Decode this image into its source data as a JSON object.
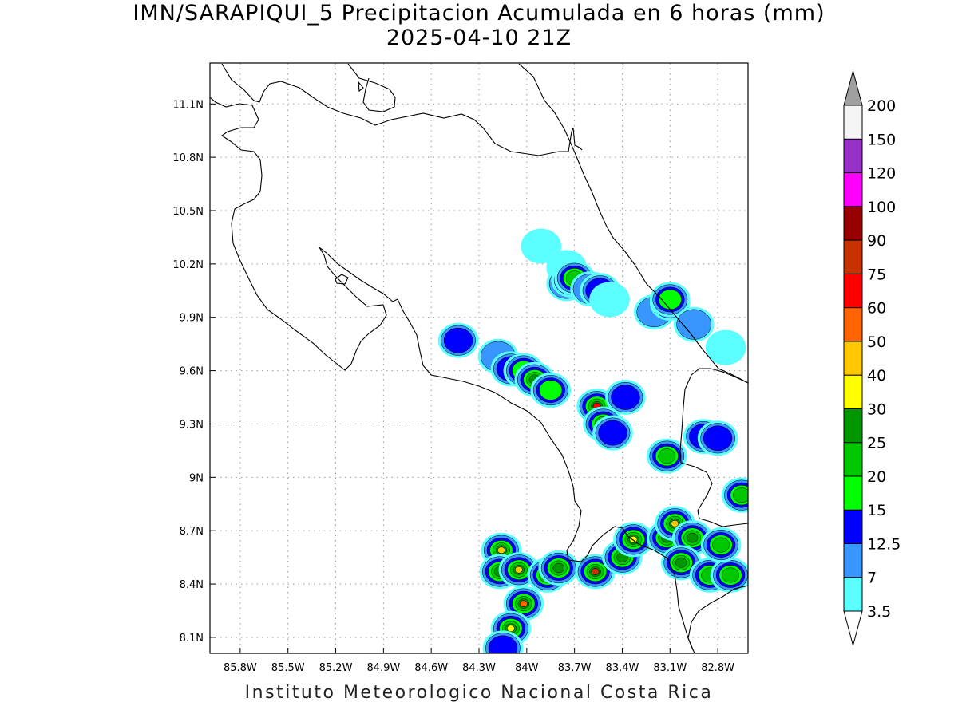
{
  "title": {
    "line1": "IMN/SARAPIQUI_5 Precipitacion Acumulada en 6 horas (mm)",
    "line2": "2025-04-10 21Z"
  },
  "credit": "Instituto Meteorologico Nacional Costa Rica",
  "axes": {
    "lon_ticks": [
      "85.8W",
      "85.5W",
      "85.2W",
      "84.9W",
      "84.6W",
      "84.3W",
      "84W",
      "83.7W",
      "83.4W",
      "83.1W",
      "82.8W"
    ],
    "lat_ticks": [
      "11.1N",
      "10.8N",
      "10.5N",
      "10.2N",
      "9.9N",
      "9.6N",
      "9.3N",
      "9N",
      "8.7N",
      "8.4N",
      "8.1N"
    ],
    "lon_range_deg_east": [
      -85.99,
      -82.61
    ],
    "lat_range_deg_north": [
      8.01,
      11.33
    ],
    "grid": true
  },
  "colorbar": {
    "labels": [
      "3.5",
      "7",
      "12.5",
      "15",
      "20",
      "25",
      "30",
      "40",
      "50",
      "60",
      "75",
      "90",
      "100",
      "120",
      "150",
      "200"
    ],
    "colors": [
      "#5cffff",
      "#3a96ff",
      "#0000ff",
      "#00ff00",
      "#00c800",
      "#009600",
      "#ffff00",
      "#ffc800",
      "#ff6400",
      "#ff0000",
      "#c83200",
      "#960000",
      "#ff00ff",
      "#9632c8",
      "#f5f5f5"
    ],
    "over_color": "#a0a0a0",
    "under_color": "#ffffff"
  },
  "precip_cells": [
    {
      "lon": -83.91,
      "lat": 10.3,
      "v": 3.5
    },
    {
      "lon": -83.75,
      "lat": 10.18,
      "v": 3.5
    },
    {
      "lon": -83.75,
      "lat": 10.09,
      "v": 7
    },
    {
      "lon": -83.72,
      "lat": 10.11,
      "v": 15
    },
    {
      "lon": -83.7,
      "lat": 10.12,
      "v": 20
    },
    {
      "lon": -83.6,
      "lat": 10.06,
      "v": 7
    },
    {
      "lon": -83.54,
      "lat": 10.05,
      "v": 12.5
    },
    {
      "lon": -83.48,
      "lat": 10.0,
      "v": 3.5
    },
    {
      "lon": -83.2,
      "lat": 9.93,
      "v": 7
    },
    {
      "lon": -83.1,
      "lat": 9.98,
      "v": 12.5
    },
    {
      "lon": -83.1,
      "lat": 10.0,
      "v": 15
    },
    {
      "lon": -82.95,
      "lat": 9.86,
      "v": 7
    },
    {
      "lon": -82.75,
      "lat": 9.73,
      "v": 3.5
    },
    {
      "lon": -84.43,
      "lat": 9.77,
      "v": 12.5
    },
    {
      "lon": -84.18,
      "lat": 9.68,
      "v": 7
    },
    {
      "lon": -84.1,
      "lat": 9.61,
      "v": 12.5
    },
    {
      "lon": -84.02,
      "lat": 9.6,
      "v": 15
    },
    {
      "lon": -83.95,
      "lat": 9.55,
      "v": 25
    },
    {
      "lon": -83.85,
      "lat": 9.49,
      "v": 15
    },
    {
      "lon": -83.56,
      "lat": 9.4,
      "v": 60
    },
    {
      "lon": -83.52,
      "lat": 9.3,
      "v": 20
    },
    {
      "lon": -83.46,
      "lat": 9.25,
      "v": 12.5
    },
    {
      "lon": -83.38,
      "lat": 9.45,
      "v": 12.5
    },
    {
      "lon": -83.12,
      "lat": 9.12,
      "v": 20
    },
    {
      "lon": -82.89,
      "lat": 9.23,
      "v": 12.5
    },
    {
      "lon": -82.8,
      "lat": 9.22,
      "v": 12.5
    },
    {
      "lon": -82.65,
      "lat": 8.9,
      "v": 20
    },
    {
      "lon": -84.16,
      "lat": 8.59,
      "v": 40
    },
    {
      "lon": -84.17,
      "lat": 8.47,
      "v": 25
    },
    {
      "lon": -84.05,
      "lat": 8.48,
      "v": 40
    },
    {
      "lon": -84.02,
      "lat": 8.29,
      "v": 50
    },
    {
      "lon": -84.1,
      "lat": 8.15,
      "v": 30
    },
    {
      "lon": -84.15,
      "lat": 8.04,
      "v": 12.5
    },
    {
      "lon": -83.87,
      "lat": 8.45,
      "v": 40
    },
    {
      "lon": -83.8,
      "lat": 8.49,
      "v": 25
    },
    {
      "lon": -83.57,
      "lat": 8.47,
      "v": 75
    },
    {
      "lon": -83.4,
      "lat": 8.55,
      "v": 25
    },
    {
      "lon": -83.33,
      "lat": 8.65,
      "v": 30
    },
    {
      "lon": -83.12,
      "lat": 8.66,
      "v": 25
    },
    {
      "lon": -83.07,
      "lat": 8.74,
      "v": 40
    },
    {
      "lon": -82.96,
      "lat": 8.66,
      "v": 25
    },
    {
      "lon": -83.03,
      "lat": 8.52,
      "v": 25
    },
    {
      "lon": -82.85,
      "lat": 8.45,
      "v": 20
    },
    {
      "lon": -82.72,
      "lat": 8.45,
      "v": 20
    },
    {
      "lon": -82.78,
      "lat": 8.62,
      "v": 20
    }
  ]
}
